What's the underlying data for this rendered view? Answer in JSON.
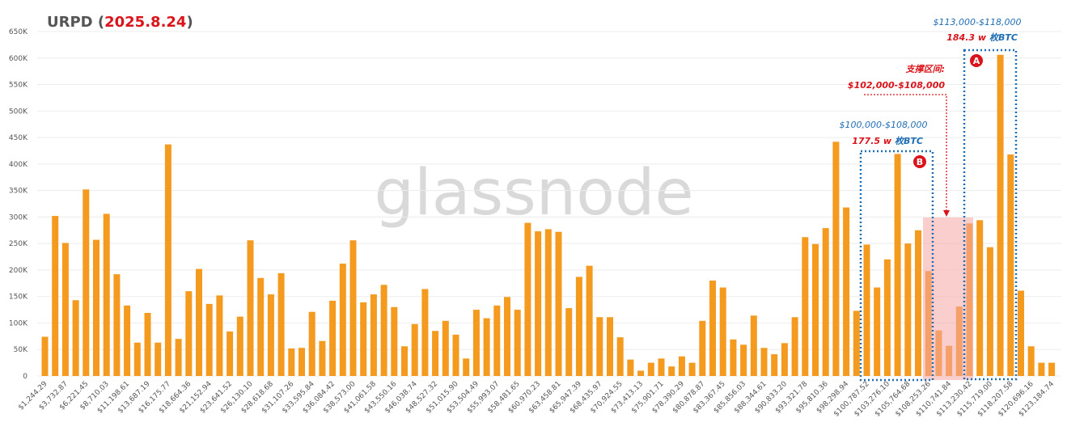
{
  "chart_data": {
    "type": "bar",
    "title_parts": [
      "URPD (",
      "2025.8.24",
      ")"
    ],
    "watermark": "glassnode",
    "color": "#f39a1f",
    "grid": true,
    "ylim": [
      0,
      650000
    ],
    "yticks": [
      0,
      {
        "value": 50000,
        "label": "50K"
      },
      {
        "value": 100000,
        "label": "100K"
      },
      {
        "value": 150000,
        "label": "150K"
      },
      {
        "value": 200000,
        "label": "200K"
      },
      {
        "value": 250000,
        "label": "250K"
      },
      {
        "value": 300000,
        "label": "300K"
      },
      {
        "value": 350000,
        "label": "350K"
      },
      {
        "value": 400000,
        "label": "400K"
      },
      {
        "value": 450000,
        "label": "450K"
      },
      {
        "value": 500000,
        "label": "500K"
      },
      {
        "value": 550000,
        "label": "550K"
      },
      {
        "value": 600000,
        "label": "600K"
      },
      {
        "value": 650000,
        "label": "650K"
      }
    ],
    "categories": [
      "$1,244.29",
      null,
      "$3,732.87",
      null,
      "$6,221.45",
      null,
      "$8,710.03",
      null,
      "$11,198.61",
      null,
      "$13,687.19",
      null,
      "$16,175.77",
      null,
      "$18,664.36",
      null,
      "$21,152.94",
      null,
      "$23,641.52",
      null,
      "$26,130.10",
      null,
      "$28,618.68",
      null,
      "$31,107.26",
      null,
      "$33,595.84",
      null,
      "$36,084.42",
      null,
      "$38,573.00",
      null,
      "$41,061.58",
      null,
      "$43,550.16",
      null,
      "$46,038.74",
      null,
      "$48,527.32",
      null,
      "$51,015.90",
      null,
      "$53,504.49",
      null,
      "$55,993.07",
      null,
      "$58,481.65",
      null,
      "$60,970.23",
      null,
      "$63,458.81",
      null,
      "$65,947.39",
      null,
      "$68,435.97",
      null,
      "$70,924.55",
      null,
      "$73,413.13",
      null,
      "$75,901.71",
      null,
      "$78,390.29",
      null,
      "$80,878.87",
      null,
      "$83,367.45",
      null,
      "$85,856.03",
      null,
      "$88,344.61",
      null,
      "$90,833.20",
      null,
      "$93,321.78",
      null,
      "$95,810.36",
      null,
      "$98,298.94",
      null,
      "$100,787.52",
      null,
      "$103,276.10",
      null,
      "$105,764.68",
      null,
      "$108,253.26",
      null,
      "$110,741.84",
      null,
      "$113,230.42",
      null,
      "$115,719.00",
      null,
      "$118,207.58",
      null,
      "$120,696.16",
      null,
      "$123,184.74"
    ],
    "values": [
      74000,
      302000,
      251000,
      143000,
      352000,
      257000,
      306000,
      192000,
      133000,
      63000,
      119000,
      63000,
      437000,
      70000,
      160000,
      202000,
      136000,
      152000,
      84000,
      112000,
      256000,
      185000,
      154000,
      194000,
      52000,
      53000,
      121000,
      66000,
      142000,
      212000,
      256000,
      139000,
      154000,
      172000,
      130000,
      56000,
      98000,
      164000,
      85000,
      104000,
      78000,
      33000,
      125000,
      109000,
      133000,
      149000,
      125000,
      289000,
      273000,
      277000,
      272000,
      128000,
      187000,
      208000,
      111000,
      111000,
      73000,
      31000,
      10000,
      25000,
      33000,
      18000,
      37000,
      25000,
      104000,
      180000,
      167000,
      69000,
      59000,
      114000,
      53000,
      41000,
      62000,
      111000,
      262000,
      249000,
      279000,
      442000,
      318000,
      123000,
      248000,
      167000,
      220000,
      419000,
      250000,
      275000,
      198000,
      86000,
      57000,
      131000,
      288000,
      294000,
      243000,
      606000,
      418000,
      161000,
      56000,
      25000,
      25000
    ],
    "annotations": {
      "a": {
        "range": "$113,000-$118,000",
        "amount": "184.3 w",
        "unit": "枚BTC",
        "marker": "A"
      },
      "support": {
        "label": "支撑区间:",
        "range": "$102,000-$108,000"
      },
      "b": {
        "range": "$100,000-$108,000",
        "amount": "177.5 w",
        "unit": "枚BTC",
        "marker": "B"
      }
    }
  }
}
